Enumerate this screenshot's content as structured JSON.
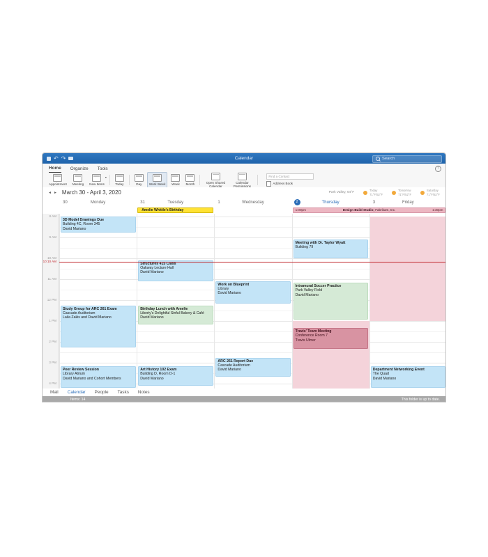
{
  "app": {
    "title": "Calendar",
    "search_placeholder": "Search"
  },
  "ribbon": {
    "tabs": [
      {
        "label": "Home",
        "active": true
      },
      {
        "label": "Organize",
        "active": false
      },
      {
        "label": "Tools",
        "active": false
      }
    ],
    "groups": [
      [
        {
          "label": "Appointment",
          "icon": "appointment"
        },
        {
          "label": "Meeting",
          "icon": "meeting"
        },
        {
          "label": "New Items",
          "icon": "new-items",
          "caret": true
        }
      ],
      [
        {
          "label": "Today",
          "icon": "today"
        }
      ],
      [
        {
          "label": "Day",
          "icon": "day"
        },
        {
          "label": "Work Week",
          "icon": "work-week",
          "selected": true
        },
        {
          "label": "Week",
          "icon": "week"
        },
        {
          "label": "Month",
          "icon": "month"
        }
      ],
      [
        {
          "label": "Open Shared Calendar",
          "icon": "open-shared-calendar"
        },
        {
          "label": "Calendar Permissions",
          "icon": "calendar-permissions"
        }
      ]
    ],
    "find_contact_placeholder": "Find a Contact",
    "address_book_label": "Address Book",
    "help_label": "?"
  },
  "toolbar": {
    "date_range": "March 30 - April 3, 2020",
    "prev_arrow": "◄",
    "next_arrow": "►"
  },
  "weather": {
    "location": "Park Valley, 64°F",
    "days": [
      {
        "label": "Today",
        "temps": "71°F/52°F"
      },
      {
        "label": "Tomorrow",
        "temps": "71°F/52°F"
      },
      {
        "label": "Saturday",
        "temps": "71°F/52°F"
      }
    ]
  },
  "calendar": {
    "day_headers": [
      {
        "number": "30",
        "name": "Monday",
        "today": false
      },
      {
        "number": "31",
        "name": "Tuesday",
        "today": false
      },
      {
        "number": "1",
        "name": "Wednesday",
        "today": false
      },
      {
        "number": "2",
        "name": "Thursday",
        "today": true
      },
      {
        "number": "3",
        "name": "Friday",
        "today": false
      }
    ],
    "time_labels": [
      "8 AM",
      "9 AM",
      "10 AM",
      "11 AM",
      "12 PM",
      "1 PM",
      "2 PM",
      "3 PM",
      "4 PM"
    ],
    "current_time": {
      "label": "10:10 AM",
      "time": "10:10 AM"
    },
    "all_day_events": [
      {
        "title": "Amelie Whittle's Birthday",
        "day_start": 1,
        "day_end": 1,
        "color": "yellow"
      },
      {
        "title": "Design Build Studio;",
        "company": " Fabrikam, Inc.",
        "start_label": "1:00pm",
        "end_label": "1:30pm",
        "day_start": 3,
        "day_end": 4,
        "color": "pink"
      }
    ],
    "busy_shading": [
      {
        "day": 3,
        "start": "1:00 PM",
        "end": "4:25 PM"
      },
      {
        "day": 4,
        "start": "8:00 AM",
        "end": "1:00 PM"
      }
    ],
    "events": [
      {
        "day": 0,
        "title": "3D Model Drawings Due",
        "location": "Building 4C, Room 345",
        "person": "David Mariano",
        "start": "8:00 AM",
        "end": "8:45 AM",
        "color": "blue"
      },
      {
        "day": 0,
        "title": "Study Group for ARC 261 Exam",
        "location": "Cascade Auditorium",
        "person": "Laila Zakis and David Mariano",
        "start": "12:15 PM",
        "end": "2:15 PM",
        "color": "blue"
      },
      {
        "day": 0,
        "title": "Peer Review Session",
        "location": "Library Atrium",
        "person": "David Mariano and Cohort Members",
        "start": "3:10 PM",
        "end": "4:30 PM",
        "color": "blue"
      },
      {
        "day": 1,
        "title": "Structures 415 Class",
        "location": "Oakway Lecture Hall",
        "person": "David Mariano",
        "start": "10:05 AM",
        "end": "11:05 AM",
        "color": "blue"
      },
      {
        "day": 1,
        "title": "Birthday Lunch with Amelie",
        "location": "Liberty's Delightful Sinful Bakery & Café",
        "person": "David Mariano",
        "start": "12:15 PM",
        "end": "1:10 PM",
        "color": "green"
      },
      {
        "day": 1,
        "title": "Art History 102 Exam",
        "location": "Building D, Room D-1",
        "person": "David Mariano",
        "start": "3:10 PM",
        "end": "4:05 PM",
        "color": "blue"
      },
      {
        "day": 2,
        "title": "Work on Blueprint",
        "location": "Library",
        "person": "David Mariano",
        "start": "11:05 AM",
        "end": "12:10 PM",
        "color": "blue"
      },
      {
        "day": 2,
        "title": "ARC 261 Report Due",
        "location": "Cascade Auditorium",
        "person": "David Mariano",
        "start": "2:45 PM",
        "end": "3:40 PM",
        "color": "blue"
      },
      {
        "day": 3,
        "title": "Meeting with Dr. Taylor Wyatt",
        "location": "Building 79",
        "person": "",
        "start": "9:05 AM",
        "end": "10:00 AM",
        "color": "blue"
      },
      {
        "day": 3,
        "title": "Intramural Soccer Practice",
        "location": "Park Valley Field",
        "person": "David Mariano",
        "start": "11:10 AM",
        "end": "12:55 PM",
        "color": "green"
      },
      {
        "day": 3,
        "title": "Travis' Team Meeting",
        "location": "Conference Room 7",
        "person": "Travis Ulmer",
        "start": "1:20 PM",
        "end": "2:20 PM",
        "color": "rose"
      },
      {
        "day": 4,
        "title": "Department Networking Event",
        "location": "The Quad",
        "person": "David Mariano",
        "start": "3:10 PM",
        "end": "4:15 PM",
        "color": "blue"
      }
    ]
  },
  "footer": {
    "tabs": [
      {
        "label": "Mail",
        "active": false
      },
      {
        "label": "Calendar",
        "active": true
      },
      {
        "label": "People",
        "active": false
      },
      {
        "label": "Tasks",
        "active": false
      },
      {
        "label": "Notes",
        "active": false
      }
    ],
    "items_count": "Items: 14",
    "sync_status": "This folder is up to date."
  },
  "colors": {
    "titlebar_blue": "#2268b2",
    "accent_blue": "#2a6db8",
    "event_blue": "#c3e4f7",
    "event_green": "#d5ead6",
    "event_rose": "#d893a2",
    "busy_pink": "#f4d3da",
    "banner_pink": "#ecb7c2",
    "banner_yellow": "#ffe234",
    "current_time_red": "#c0262c",
    "statusbar_gray": "#a9a9a9"
  }
}
